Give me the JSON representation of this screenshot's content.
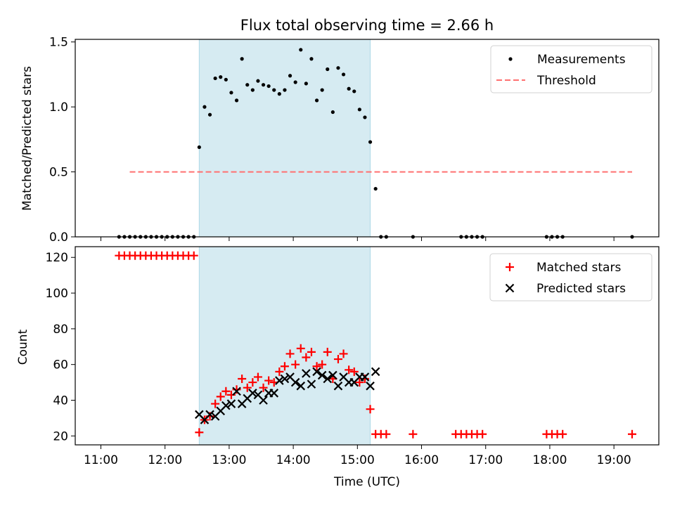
{
  "chart_data": [
    {
      "type": "scatter",
      "title": "Flux total observing time = 2.66 h",
      "xlabel": "",
      "ylabel": "Matched/Predicted stars",
      "ylim": [
        0,
        1.52
      ],
      "yticks": [
        "0.0",
        "0.5",
        "1.0",
        "1.5"
      ],
      "shaded_span": [
        "12:32",
        "15:12"
      ],
      "shade_color": "#add8e6",
      "legend_position": "upper right",
      "series": [
        {
          "name": "Measurements",
          "kind": "scatter",
          "color": "#000000",
          "x": [
            "11:17",
            "11:22",
            "11:27",
            "11:32",
            "11:37",
            "11:42",
            "11:47",
            "11:52",
            "11:57",
            "12:02",
            "12:07",
            "12:12",
            "12:17",
            "12:22",
            "12:27",
            "12:32",
            "12:37",
            "12:42",
            "12:47",
            "12:52",
            "12:57",
            "13:02",
            "13:07",
            "13:12",
            "13:17",
            "13:22",
            "13:27",
            "13:32",
            "13:37",
            "13:42",
            "13:47",
            "13:52",
            "13:57",
            "14:02",
            "14:07",
            "14:12",
            "14:17",
            "14:22",
            "14:27",
            "14:32",
            "14:37",
            "14:42",
            "14:47",
            "14:52",
            "14:57",
            "15:02",
            "15:07",
            "15:12",
            "15:17",
            "15:22",
            "15:27",
            "15:52",
            "16:37",
            "16:42",
            "16:47",
            "16:52",
            "16:57",
            "17:57",
            "18:02",
            "18:07",
            "18:12",
            "19:17"
          ],
          "y": [
            0,
            0,
            0,
            0,
            0,
            0,
            0,
            0,
            0,
            0,
            0,
            0,
            0,
            0,
            0,
            0.69,
            1.0,
            0.94,
            1.22,
            1.23,
            1.21,
            1.11,
            1.05,
            1.37,
            1.17,
            1.13,
            1.2,
            1.17,
            1.16,
            1.13,
            1.1,
            1.13,
            1.24,
            1.19,
            1.44,
            1.18,
            1.37,
            1.05,
            1.13,
            1.29,
            0.96,
            1.3,
            1.25,
            1.14,
            1.12,
            0.98,
            0.92,
            0.73,
            0.37,
            0,
            0,
            0,
            0,
            0,
            0,
            0,
            0,
            0,
            0,
            0,
            0,
            0
          ]
        },
        {
          "name": "Threshold",
          "kind": "line",
          "style": "dashed",
          "color": "#ff7070",
          "x": [
            "11:27",
            "19:17"
          ],
          "y": [
            0.5,
            0.5
          ]
        }
      ]
    },
    {
      "type": "scatter",
      "title": "",
      "xlabel": "Time (UTC)",
      "ylabel": "Count",
      "ylim": [
        15,
        126
      ],
      "yticks": [
        "20",
        "40",
        "60",
        "80",
        "100",
        "120"
      ],
      "xticks": [
        "11:00",
        "12:00",
        "13:00",
        "14:00",
        "15:00",
        "16:00",
        "17:00",
        "18:00",
        "19:00"
      ],
      "shaded_span": [
        "12:32",
        "15:12"
      ],
      "legend_position": "upper right",
      "series": [
        {
          "name": "Matched stars",
          "kind": "plus",
          "color": "#ff0000",
          "x": [
            "11:17",
            "11:22",
            "11:27",
            "11:32",
            "11:37",
            "11:42",
            "11:47",
            "11:52",
            "11:57",
            "12:02",
            "12:07",
            "12:12",
            "12:17",
            "12:22",
            "12:27",
            "12:32",
            "12:37",
            "12:42",
            "12:47",
            "12:52",
            "12:57",
            "13:02",
            "13:07",
            "13:12",
            "13:17",
            "13:22",
            "13:27",
            "13:32",
            "13:37",
            "13:42",
            "13:47",
            "13:52",
            "13:57",
            "14:02",
            "14:07",
            "14:12",
            "14:17",
            "14:22",
            "14:27",
            "14:32",
            "14:37",
            "14:42",
            "14:47",
            "14:52",
            "14:57",
            "15:02",
            "15:07",
            "15:12",
            "15:17",
            "15:22",
            "15:27",
            "15:52",
            "16:32",
            "16:37",
            "16:42",
            "16:47",
            "16:52",
            "16:57",
            "17:57",
            "18:02",
            "18:07",
            "18:12",
            "19:17"
          ],
          "y": [
            121,
            121,
            121,
            121,
            121,
            121,
            121,
            121,
            121,
            121,
            121,
            121,
            121,
            121,
            121,
            22,
            29,
            31,
            38,
            42,
            45,
            43,
            46,
            52,
            47,
            50,
            53,
            47,
            51,
            50,
            56,
            59,
            66,
            60,
            69,
            64,
            67,
            59,
            60,
            67,
            52,
            63,
            66,
            57,
            56,
            50,
            52,
            35,
            21,
            21,
            21,
            21,
            21,
            21,
            21,
            21,
            21,
            21,
            21,
            21,
            21,
            21,
            21
          ]
        },
        {
          "name": "Predicted stars",
          "kind": "x",
          "color": "#000000",
          "x": [
            "12:32",
            "12:37",
            "12:42",
            "12:47",
            "12:52",
            "12:57",
            "13:02",
            "13:07",
            "13:12",
            "13:17",
            "13:22",
            "13:27",
            "13:32",
            "13:37",
            "13:42",
            "13:47",
            "13:52",
            "13:57",
            "14:02",
            "14:07",
            "14:12",
            "14:17",
            "14:22",
            "14:27",
            "14:32",
            "14:37",
            "14:42",
            "14:47",
            "14:52",
            "14:57",
            "15:02",
            "15:07",
            "15:12",
            "15:17"
          ],
          "y": [
            32,
            29,
            32,
            31,
            34,
            37,
            38,
            45,
            38,
            41,
            44,
            43,
            40,
            44,
            44,
            51,
            52,
            53,
            50,
            48,
            55,
            49,
            56,
            54,
            52,
            54,
            48,
            53,
            50,
            50,
            53,
            53,
            48,
            56
          ]
        }
      ]
    }
  ]
}
